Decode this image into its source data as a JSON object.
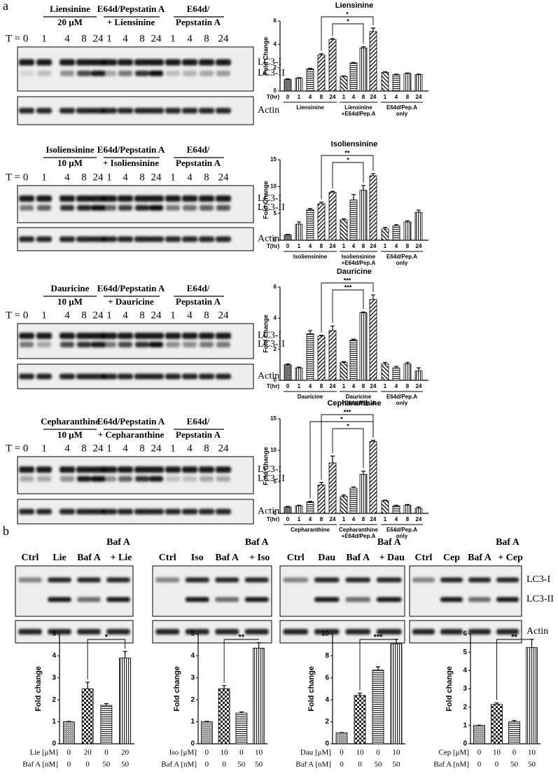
{
  "panel_labels": [
    "a",
    "b"
  ],
  "blots_a": [
    {
      "groups": [
        [
          "Liensinine",
          "20 μM"
        ],
        [
          "E64d/Pepstatin A",
          "+ Liensinine"
        ],
        [
          "E64d/",
          "Pepstatin A"
        ]
      ],
      "times": [
        "T = 0",
        "1",
        "4",
        "8",
        "24",
        "1",
        "4",
        "8",
        "24",
        "1",
        "4",
        "8",
        "24"
      ],
      "bands": [
        "LC3-I",
        "LC3-II"
      ],
      "loading": "Actin"
    },
    {
      "groups": [
        [
          "Isoliensinine",
          "10 μM"
        ],
        [
          "E64d/Pepstatin A",
          "+ Isoliensinine"
        ],
        [
          "E64d/",
          "Pepstatin A"
        ]
      ],
      "times": [
        "T = 0",
        "1",
        "4",
        "8",
        "24",
        "1",
        "4",
        "8",
        "24",
        "1",
        "4",
        "8",
        "24"
      ],
      "bands": [
        "LC3-I",
        "LC3-II"
      ],
      "loading": "Actin"
    },
    {
      "groups": [
        [
          "Dauricine",
          "10 μM"
        ],
        [
          "E64d/Pepstatin A",
          "+ Dauricine"
        ],
        [
          "E64d/",
          "Pepstatin A"
        ]
      ],
      "times": [
        "T = 0",
        "1",
        "4",
        "8",
        "24",
        "1",
        "4",
        "8",
        "24",
        "1",
        "4",
        "8",
        "24"
      ],
      "bands": [
        "LC3-I",
        "LC3-II"
      ],
      "loading": "Actin"
    },
    {
      "groups": [
        [
          "Cepharanthine",
          "10 μM"
        ],
        [
          "E64d/Pepstatin A",
          "+ Cepharanthine"
        ],
        [
          "E64d/",
          "Pepstatin A"
        ]
      ],
      "times": [
        "T = 0",
        "1",
        "4",
        "8",
        "24",
        "1",
        "4",
        "8",
        "24",
        "1",
        "4",
        "8",
        "24"
      ],
      "bands": [
        "LC3-I",
        "LC3-II"
      ],
      "loading": "Actin"
    }
  ],
  "blots_b": [
    {
      "lanes": [
        "Ctrl",
        "Lie",
        "Baf A"
      ],
      "combo": [
        "Baf A",
        "+ Lie"
      ]
    },
    {
      "lanes": [
        "Ctrl",
        "Iso",
        "Baf A"
      ],
      "combo": [
        "Baf A",
        "+ Iso"
      ]
    },
    {
      "lanes": [
        "Ctrl",
        "Dau",
        "Baf A"
      ],
      "combo": [
        "Baf A",
        "+ Dau"
      ]
    },
    {
      "lanes": [
        "Ctrl",
        "Cep",
        "Baf A"
      ],
      "combo": [
        "Baf A",
        "+ Cep"
      ]
    }
  ],
  "blot_b_labels": {
    "bands": [
      "LC3-I",
      "LC3-II"
    ],
    "loading": "Actin"
  },
  "chart_data": [
    {
      "type": "bar",
      "title": "Liensinine",
      "y_label": "Fold Change",
      "x_label": "T(hr)",
      "categories": [
        "0",
        "1",
        "4",
        "8",
        "24",
        "1",
        "4",
        "8",
        "24",
        "1",
        "4",
        "8",
        "24"
      ],
      "groups": [
        [
          "Liensinine"
        ],
        [
          "Liensinine",
          "+E64d/Pep.A"
        ],
        [
          "E64d/Pep.A",
          "only"
        ]
      ],
      "values": [
        1.0,
        1.1,
        1.9,
        3.1,
        4.4,
        1.25,
        2.4,
        3.7,
        5.1,
        1.6,
        1.4,
        1.5,
        1.4
      ],
      "errors": [
        0.05,
        0.05,
        0.05,
        0.1,
        0.1,
        0.05,
        0.05,
        0.1,
        0.3,
        0.05,
        0.05,
        0.05,
        0.05
      ],
      "ylim": [
        0,
        6
      ],
      "yticks": [
        0,
        2,
        4,
        6
      ],
      "annotations": [
        "*",
        "*"
      ]
    },
    {
      "type": "bar",
      "title": "Isoliensinine",
      "y_label": "Fold Change",
      "x_label": "T(hr)",
      "categories": [
        "0",
        "1",
        "4",
        "8",
        "24",
        "1",
        "4",
        "8",
        "24",
        "1",
        "4",
        "8",
        "24"
      ],
      "groups": [
        [
          "Isoliensinine"
        ],
        [
          "Isoliensinine",
          "+E64d/Pep.A"
        ],
        [
          "E64d/Pep.A",
          "only"
        ]
      ],
      "values": [
        1.0,
        3.0,
        5.7,
        6.8,
        8.9,
        3.8,
        7.5,
        9.3,
        12.0,
        2.1,
        2.7,
        3.4,
        5.2
      ],
      "errors": [
        0.1,
        0.4,
        0.2,
        0.3,
        0.2,
        0.2,
        1.0,
        0.9,
        0.4,
        0.3,
        0.2,
        0.2,
        0.4
      ],
      "ylim": [
        0,
        15
      ],
      "yticks": [
        0,
        5,
        10,
        15
      ],
      "annotations": [
        "**",
        "*"
      ]
    },
    {
      "type": "bar",
      "title": "Dauricine",
      "y_label": "Fold Change",
      "x_label": "T(hr)",
      "categories": [
        "0",
        "1",
        "4",
        "8",
        "24",
        "1",
        "4",
        "8",
        "24",
        "1",
        "4",
        "8",
        "24"
      ],
      "groups": [
        [
          "Dauricine"
        ],
        [
          "Dauricine",
          "+E64d/Pep.A"
        ],
        [
          "E64d/Pep.A",
          "only"
        ]
      ],
      "values": [
        1.0,
        0.8,
        3.0,
        2.85,
        3.2,
        1.15,
        2.6,
        4.35,
        5.2,
        1.05,
        0.8,
        1.05,
        0.6
      ],
      "errors": [
        0.05,
        0.05,
        0.2,
        0.05,
        0.3,
        0.05,
        0.05,
        0.05,
        0.3,
        0.1,
        0.1,
        0.1,
        0.2
      ],
      "ylim": [
        0,
        6
      ],
      "yticks": [
        0,
        2,
        4,
        6
      ],
      "annotations": [
        "***",
        "***"
      ]
    },
    {
      "type": "bar",
      "title": "Cepharanthine",
      "y_label": "Fold Change",
      "x_label": "T(hr)",
      "categories": [
        "0",
        "1",
        "4",
        "8",
        "24",
        "1",
        "4",
        "8",
        "24",
        "1",
        "4",
        "8",
        "24"
      ],
      "groups": [
        [
          "Cepharanthine"
        ],
        [
          "Cepharanthine",
          "+E64d/Pep.A"
        ],
        [
          "E64d/Pep.A",
          "only"
        ]
      ],
      "values": [
        1.0,
        1.2,
        1.8,
        4.5,
        8.0,
        2.7,
        4.0,
        6.2,
        11.4,
        2.0,
        1.2,
        1.3,
        0.8
      ],
      "errors": [
        0.1,
        0.1,
        0.1,
        0.4,
        1.1,
        0.2,
        0.2,
        0.5,
        0.2,
        0.1,
        0.1,
        0.1,
        0.2
      ],
      "ylim": [
        0,
        15
      ],
      "yticks": [
        0,
        5,
        10,
        15
      ],
      "annotations": [
        "***",
        "*",
        "*"
      ]
    },
    {
      "type": "bar",
      "y_label": "Fold change",
      "categories": [
        null,
        null,
        null,
        null
      ],
      "values": [
        1.0,
        2.5,
        1.75,
        3.9
      ],
      "errors": [
        0.02,
        0.3,
        0.08,
        0.3
      ],
      "ylim": [
        0,
        5
      ],
      "yticks": [
        0,
        1,
        2,
        3,
        4,
        5
      ],
      "annotations": [
        "*"
      ],
      "x_table": [
        {
          "label": "Lie [μM]",
          "values": [
            "0",
            "20",
            "0",
            "20"
          ]
        },
        {
          "label": "Baf A [nM]",
          "values": [
            "0",
            "0",
            "50",
            "50"
          ]
        }
      ]
    },
    {
      "type": "bar",
      "y_label": "Fold change",
      "categories": [
        null,
        null,
        null,
        null
      ],
      "values": [
        1.0,
        2.5,
        1.4,
        4.35
      ],
      "errors": [
        0.02,
        0.15,
        0.05,
        0.25
      ],
      "ylim": [
        0,
        5
      ],
      "yticks": [
        0,
        1,
        2,
        3,
        4,
        5
      ],
      "annotations": [
        "**"
      ],
      "x_table": [
        {
          "label": "Iso [μM]",
          "values": [
            "0",
            "10",
            "0",
            "10"
          ]
        },
        {
          "label": "Baf A [nM]",
          "values": [
            "0",
            "0",
            "50",
            "50"
          ]
        }
      ]
    },
    {
      "type": "bar",
      "y_label": "Fold change",
      "categories": [
        null,
        null,
        null,
        null
      ],
      "values": [
        1.0,
        4.4,
        6.7,
        9.1
      ],
      "errors": [
        0.02,
        0.2,
        0.3,
        0.4
      ],
      "ylim": [
        0,
        10
      ],
      "yticks": [
        0,
        2,
        4,
        6,
        8,
        10
      ],
      "annotations": [
        "***"
      ],
      "x_table": [
        {
          "label": "Dau [μM]",
          "values": [
            "0",
            "10",
            "0",
            "10"
          ]
        },
        {
          "label": "Baf A [nM]",
          "values": [
            "0",
            "0",
            "50",
            "50"
          ]
        }
      ]
    },
    {
      "type": "bar",
      "y_label": "Fold change",
      "categories": [
        null,
        null,
        null,
        null
      ],
      "values": [
        1.0,
        2.15,
        1.2,
        5.25
      ],
      "errors": [
        0.02,
        0.08,
        0.07,
        0.45
      ],
      "ylim": [
        0,
        6
      ],
      "yticks": [
        0,
        1,
        2,
        3,
        4,
        5,
        6
      ],
      "annotations": [
        "**"
      ],
      "x_table": [
        {
          "label": "Cep [μM]",
          "values": [
            "0",
            "10",
            "0",
            "10"
          ]
        },
        {
          "label": "Baf A [nM]",
          "values": [
            "0",
            "0",
            "50",
            "50"
          ]
        }
      ]
    }
  ]
}
